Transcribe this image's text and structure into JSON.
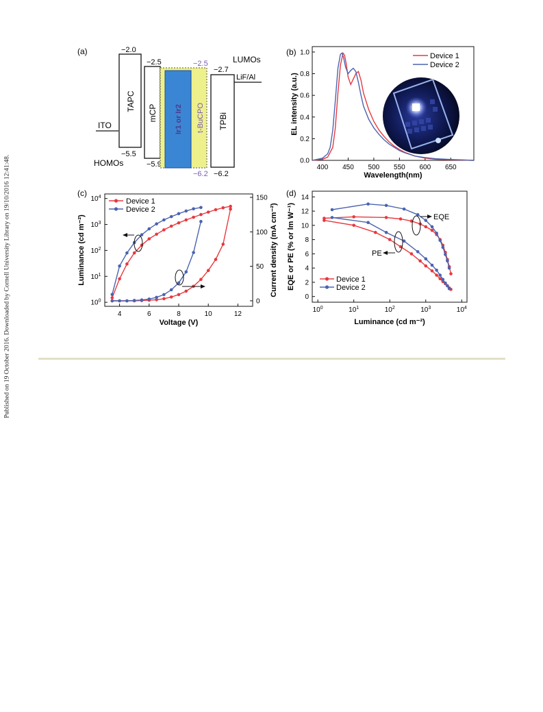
{
  "side_note": "Published on 19 October 2016. Downloaded by Cornell University Library on 19/10/2016 12:41:48.",
  "colors": {
    "device1": "#e8383d",
    "device2": "#4a63b0",
    "eml": "#3b86d4",
    "etl": "#eef08c",
    "accent": "#7a5bb0",
    "rule": "#e3dfc7"
  },
  "panel_a": {
    "label": "(a)",
    "lumos_label": "LUMOs",
    "homos_label": "HOMOs",
    "ito_label": "ITO",
    "cathode_label": "LiF/Al",
    "layers": [
      {
        "name": "TAPC",
        "lumo": "−2.0",
        "homo": "−5.5"
      },
      {
        "name": "mCP",
        "lumo": "−2.5",
        "homo": "−5.9"
      },
      {
        "name": "Ir1 or Ir2",
        "lumo": "",
        "homo": ""
      },
      {
        "name": "t-BuCPO",
        "lumo": "−2.5",
        "homo": "−6.2"
      },
      {
        "name": "TPBi",
        "lumo": "−2.7",
        "homo": "−6.2"
      }
    ]
  },
  "panel_b": {
    "label": "(b)",
    "xlabel": "Wavelength(nm)",
    "ylabel": "EL intensity (a.u.)"
  },
  "panel_c": {
    "label": "(c)",
    "xlabel": "Voltage (V)",
    "ylabel_left": "Luminance (cd m⁻²)",
    "ylabel_right": "Current density (mA cm⁻²)"
  },
  "panel_d": {
    "label": "(d)",
    "xlabel": "Luminance (cd m⁻²)",
    "ylabel": "EQE or PE (% or lm W⁻¹)",
    "annot_eqe": "EQE",
    "annot_pe": "PE"
  },
  "chart_data": [
    {
      "type": "line",
      "panel": "b",
      "xlabel": "Wavelength(nm)",
      "ylabel": "EL intensity (a.u.)",
      "xlim": [
        380,
        695
      ],
      "ylim": [
        0,
        1.05
      ],
      "xticks": [
        400,
        450,
        500,
        550,
        600,
        650
      ],
      "yticks": [
        0.0,
        0.2,
        0.4,
        0.6,
        0.8,
        1.0
      ],
      "legend": "top-right",
      "series": [
        {
          "name": "Device 1",
          "color": "#e8383d",
          "x": [
            380,
            400,
            410,
            420,
            425,
            430,
            435,
            440,
            443,
            446,
            450,
            455,
            460,
            465,
            470,
            475,
            480,
            490,
            500,
            510,
            520,
            530,
            540,
            550,
            560,
            580,
            600,
            620,
            650,
            695
          ],
          "y": [
            0,
            0.01,
            0.03,
            0.12,
            0.3,
            0.62,
            0.88,
            0.99,
            0.97,
            0.9,
            0.77,
            0.7,
            0.75,
            0.8,
            0.82,
            0.74,
            0.62,
            0.47,
            0.36,
            0.28,
            0.22,
            0.17,
            0.13,
            0.1,
            0.075,
            0.04,
            0.02,
            0.01,
            0.005,
            0
          ]
        },
        {
          "name": "Device 2",
          "color": "#4a63b0",
          "x": [
            380,
            400,
            410,
            415,
            420,
            425,
            430,
            435,
            438,
            441,
            445,
            450,
            455,
            460,
            465,
            470,
            475,
            480,
            490,
            500,
            510,
            520,
            530,
            540,
            550,
            560,
            580,
            600,
            620,
            650,
            695
          ],
          "y": [
            0,
            0.02,
            0.06,
            0.12,
            0.28,
            0.55,
            0.85,
            0.98,
            0.99,
            0.95,
            0.86,
            0.8,
            0.83,
            0.85,
            0.82,
            0.72,
            0.6,
            0.5,
            0.38,
            0.3,
            0.24,
            0.19,
            0.15,
            0.12,
            0.09,
            0.07,
            0.04,
            0.025,
            0.015,
            0.008,
            0
          ]
        }
      ]
    },
    {
      "type": "line",
      "panel": "c",
      "xlabel": "Voltage (V)",
      "ylabel": "Luminance (cd m⁻²)",
      "ylabel_right": "Current density (mA cm⁻²)",
      "xlim": [
        3,
        13
      ],
      "ylim_left_log": [
        0.7,
        15000
      ],
      "ylim_right": [
        -8,
        155
      ],
      "xticks": [
        4,
        6,
        8,
        10,
        12
      ],
      "yticks_right": [
        0,
        50,
        100,
        150
      ],
      "legend": "top-left",
      "series": [
        {
          "name": "Device 1",
          "color": "#e8383d",
          "voltage": [
            3.5,
            4,
            4.5,
            5,
            5.5,
            6,
            6.5,
            7,
            7.5,
            8,
            8.5,
            9,
            9.5,
            10,
            10.5,
            11,
            11.5
          ],
          "luminance": [
            1.5,
            8,
            30,
            80,
            160,
            280,
            420,
            620,
            860,
            1150,
            1500,
            1900,
            2400,
            3000,
            3700,
            4400,
            5000
          ],
          "current_density": [
            0,
            0,
            0,
            0,
            0.3,
            0.8,
            1.5,
            3,
            5.5,
            9,
            14,
            21,
            31,
            44,
            60,
            82,
            133
          ]
        },
        {
          "name": "Device 2",
          "color": "#4a63b0",
          "voltage": [
            3.5,
            4,
            4.5,
            5,
            5.5,
            6,
            6.5,
            7,
            7.5,
            8,
            8.5,
            9,
            9.5
          ],
          "luminance": [
            2,
            25,
            80,
            200,
            400,
            680,
            1050,
            1500,
            2000,
            2600,
            3300,
            4000,
            4500
          ],
          "current_density": [
            0,
            0,
            0,
            0.5,
            1.2,
            2.5,
            5,
            9,
            16,
            26,
            42,
            70,
            115
          ]
        }
      ]
    },
    {
      "type": "line",
      "panel": "d",
      "xlabel": "Luminance (cd m⁻²)",
      "ylabel": "EQE or PE (% or lm W⁻¹)",
      "xscale": "log",
      "xlim_log": [
        0.7,
        14000
      ],
      "ylim": [
        -0.8,
        14.8
      ],
      "yticks": [
        0,
        2,
        4,
        6,
        8,
        10,
        12,
        14
      ],
      "legend": "bottom-left",
      "series": [
        {
          "name": "Device 1 EQE",
          "color": "#e8383d",
          "x": [
            1.5,
            10,
            80,
            200,
            400,
            700,
            1000,
            1500,
            2000,
            2500,
            3000,
            3500,
            4000,
            4500,
            5000
          ],
          "y": [
            11,
            11.2,
            11.1,
            10.9,
            10.6,
            10.2,
            9.8,
            9.3,
            8.7,
            8,
            7.2,
            6.2,
            5.2,
            4.2,
            3.2
          ]
        },
        {
          "name": "Device 2 EQE",
          "color": "#4a63b0",
          "x": [
            2.5,
            25,
            80,
            250,
            600,
            1000,
            1500,
            2000,
            2500,
            3000,
            3500,
            4000,
            4500
          ],
          "y": [
            12.2,
            13,
            12.8,
            12.3,
            11.5,
            10.7,
            9.8,
            8.9,
            7.9,
            6.9,
            5.9,
            5,
            4
          ]
        },
        {
          "name": "Device 1 PE",
          "color": "#e8383d",
          "x": [
            1.5,
            10,
            40,
            100,
            200,
            400,
            700,
            1000,
            1500,
            2000,
            2500,
            3000,
            3500,
            4000,
            4500,
            5000
          ],
          "y": [
            10.7,
            10,
            9,
            8,
            7,
            6,
            5,
            4.3,
            3.6,
            3,
            2.5,
            2.1,
            1.8,
            1.5,
            1.2,
            1
          ]
        },
        {
          "name": "Device 2 PE",
          "color": "#4a63b0",
          "x": [
            2.5,
            25,
            80,
            250,
            600,
            1000,
            1500,
            2000,
            2500,
            3000,
            3500,
            4000,
            4500
          ],
          "y": [
            11.1,
            10.4,
            9,
            7.8,
            6.3,
            5.3,
            4.4,
            3.7,
            3,
            2.4,
            1.9,
            1.5,
            1.1
          ]
        }
      ]
    }
  ]
}
